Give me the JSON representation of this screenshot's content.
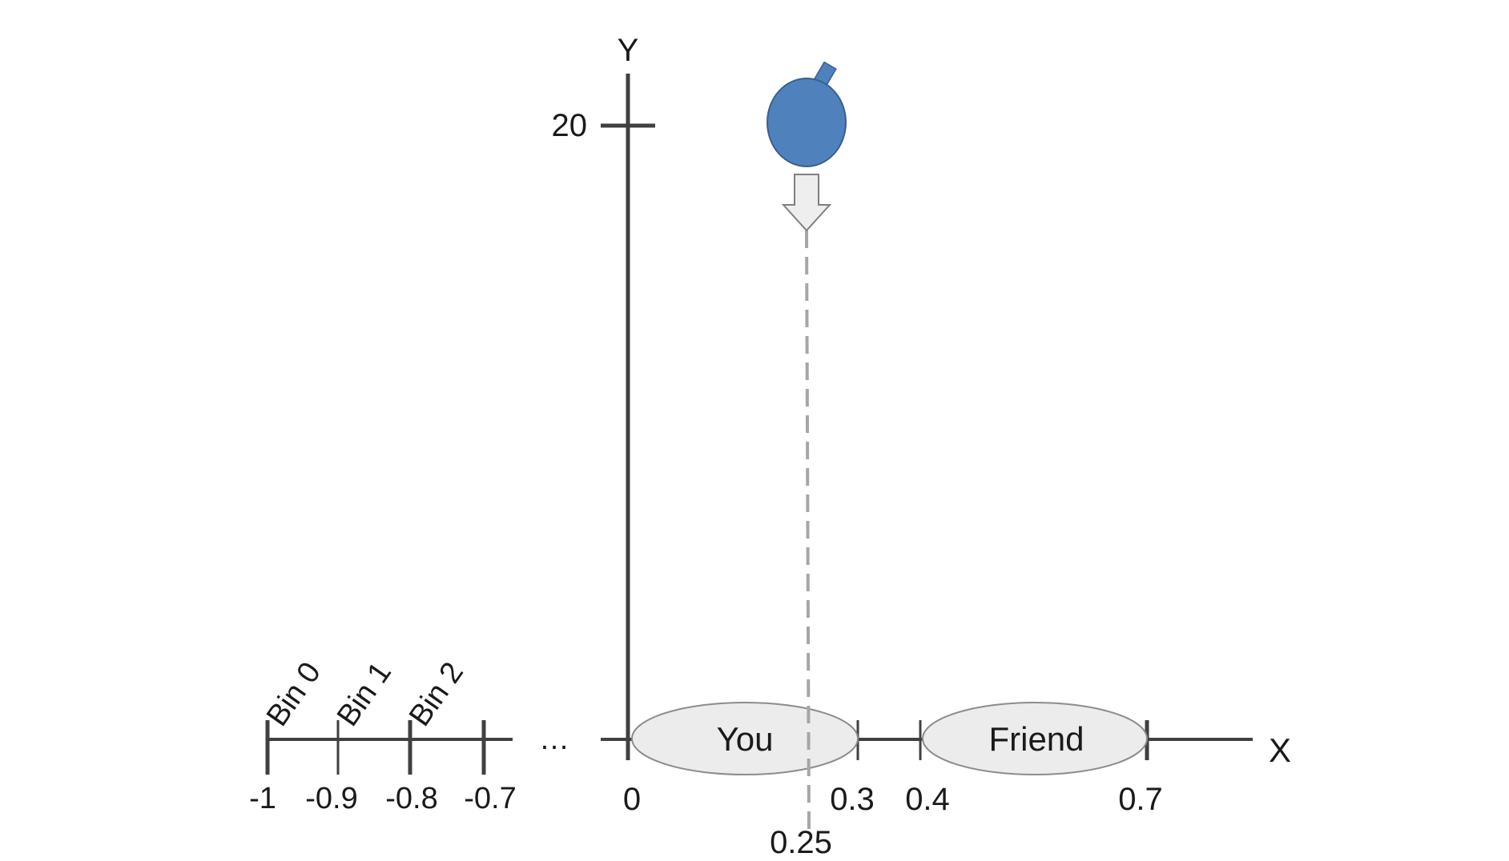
{
  "axes": {
    "y_label": "Y",
    "x_label": "X",
    "y_tick_label": "20",
    "origin_label": "0",
    "ellipsis": "…"
  },
  "left_axis_ticks": [
    "-1",
    "-0.9",
    "-0.8",
    "-0.7"
  ],
  "bins": [
    "Bin 0",
    "Bin 1",
    "Bin 2"
  ],
  "regions": [
    {
      "label": "You",
      "start_label": "0",
      "end_label": "0.3"
    },
    {
      "label": "Friend",
      "start_label": "0.4",
      "end_label": "0.7"
    }
  ],
  "drop": {
    "x_label": "0.25",
    "balloon_color": "#4f81bd",
    "arrow": "down-arrow"
  },
  "colors": {
    "axis": "#404040",
    "region_fill": "#ececec",
    "region_stroke": "#8c8c8c",
    "dashed": "#a6a6a6"
  }
}
